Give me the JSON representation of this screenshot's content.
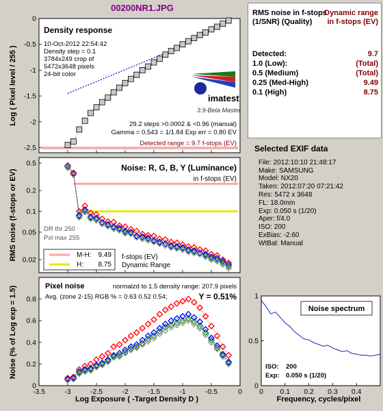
{
  "header": {
    "title": "00200NR1.JPG"
  },
  "summary": {
    "col1_title": "RMS noise in f-stops (1/SNR) (Quality)",
    "col2_title": "Dynamic range in f-stops (EV)",
    "rows": [
      {
        "label": "Detected:",
        "value": "9.7"
      },
      {
        "label": "1.0 (Low):",
        "value": "(Total)"
      },
      {
        "label": "0.5 (Medium)",
        "value": "(Total)"
      },
      {
        "label": "0.25 (Med-High)",
        "value": "9.49"
      },
      {
        "label": "0.1 (High)",
        "value": "8.75"
      }
    ]
  },
  "exif": {
    "title": "Selected EXIF data",
    "lines": [
      "File: 2012:10:10 21:48:17",
      "Make: SAMSUNG",
      "Model: NX20",
      "Taken: 2012:07:20 07:21:42",
      "Res: 5472 x 3648",
      "FL: 18.0mm",
      "Exp: 0.050 s (1/20)",
      "Aper: f/4.0",
      "ISO: 200",
      "ExBias: -2.60",
      "WtBal: Manual"
    ]
  },
  "density_panel": {
    "title": "Density response",
    "info": [
      "10-Oct-2012 22:54:42",
      "Density step = 0.1",
      "3784x249 crop of",
      "5472x3648 pixels",
      "24-bit color"
    ],
    "logo": "imatest",
    "logo_sub": "3.9-Beta  Master",
    "stats": [
      "29.2 steps >0.0002 & <0.96 (manual)",
      "Gamma = 0.543 = 1/1.84  Exp err = 0.80 EV"
    ],
    "detected_range": "Detected range = 9.7 f-stops (EV)",
    "ylabel": "Log ( Pixel level / 255 )"
  },
  "noise_panel": {
    "title": "Noise: R, G, B, Y (Luminance)",
    "subtitle": "in f-stops (EV)",
    "thr": [
      "DR thr 250",
      "Pxl max 255"
    ],
    "ylabel": "RMS noise (f-stops or EV)",
    "legend": [
      {
        "label": "M-H:",
        "value": "9.49",
        "color": "#f4a8a0"
      },
      {
        "label": "H:",
        "value": "8.75",
        "color": "#e8e800"
      }
    ],
    "legend_side": [
      "f-stops (EV)",
      "Dynamic Range"
    ]
  },
  "pixel_panel": {
    "title": "Pixel noise",
    "norm": "normalzd to 1.5 density range: 207.9 pixels",
    "avg": "Avg. (zone 2-15) RGB % = 0.63  0.52  0.54;",
    "y_value": "Y = 0.51%",
    "ylabel": "Noise (% of Log exp = 1.5)",
    "xlabel": "Log Exposure ( -Target Density D )"
  },
  "spectrum": {
    "title": "Noise spectrum",
    "iso_label": "ISO:",
    "iso": "200",
    "exp_label": "Exp:",
    "exp": "0.050 s   (1/20)",
    "xlabel": "Frequency, cycles/pixel"
  },
  "chart_data": [
    {
      "type": "scatter",
      "title": "Density response",
      "ylabel": "Log ( Pixel level / 255 )",
      "xlim": [
        -3.5,
        0
      ],
      "ylim": [
        -2.6,
        0
      ],
      "xticks": [
        -3.5,
        -3,
        -2.5,
        -2,
        -1.5,
        -1,
        -0.5,
        0
      ],
      "yticks": [
        0,
        -0.5,
        -1,
        -1.5,
        -2,
        -2.5
      ],
      "series": [
        {
          "name": "Measured",
          "x": [
            -3.0,
            -2.9,
            -2.8,
            -2.7,
            -2.6,
            -2.5,
            -2.4,
            -2.3,
            -2.2,
            -2.1,
            -2.0,
            -1.9,
            -1.8,
            -1.7,
            -1.6,
            -1.5,
            -1.4,
            -1.3,
            -1.2,
            -1.1,
            -1.0,
            -0.9,
            -0.8,
            -0.7,
            -0.6,
            -0.5,
            -0.4,
            -0.3,
            -0.2
          ],
          "y": [
            -2.45,
            -2.38,
            -2.15,
            -1.98,
            -1.83,
            -1.72,
            -1.62,
            -1.53,
            -1.43,
            -1.34,
            -1.25,
            -1.17,
            -1.09,
            -1.0,
            -0.93,
            -0.85,
            -0.78,
            -0.7,
            -0.63,
            -0.57,
            -0.5,
            -0.44,
            -0.38,
            -0.32,
            -0.27,
            -0.21,
            -0.16,
            -0.1,
            -0.04
          ]
        },
        {
          "name": "Fit",
          "x": [
            -3.0,
            -1.15
          ],
          "y": [
            -1.45,
            -0.6
          ]
        }
      ]
    },
    {
      "type": "line",
      "title": "Noise: R, G, B, Y (Luminance)",
      "ylabel": "RMS noise (f-stops or EV)",
      "yscale": "log",
      "xlim": [
        -3.5,
        0
      ],
      "ylim": [
        0.013,
        0.6
      ],
      "yticks": [
        0.5,
        0.2,
        0.1,
        0.05,
        0.02
      ],
      "thresholds": [
        0.25,
        0.1
      ],
      "x": [
        -3.0,
        -2.9,
        -2.8,
        -2.7,
        -2.6,
        -2.5,
        -2.4,
        -2.3,
        -2.2,
        -2.1,
        -2.0,
        -1.9,
        -1.8,
        -1.7,
        -1.6,
        -1.5,
        -1.4,
        -1.3,
        -1.2,
        -1.1,
        -1.0,
        -0.9,
        -0.8,
        -0.7,
        -0.6,
        -0.5,
        -0.4,
        -0.3,
        -0.2
      ],
      "series": [
        {
          "name": "R",
          "color": "#ff0000",
          "values": [
            0.46,
            0.36,
            0.1,
            0.12,
            0.095,
            0.09,
            0.078,
            0.071,
            0.07,
            0.062,
            0.06,
            0.055,
            0.052,
            0.047,
            0.045,
            0.044,
            0.04,
            0.039,
            0.036,
            0.035,
            0.033,
            0.031,
            0.03,
            0.028,
            0.027,
            0.024,
            0.023,
            0.02,
            0.018
          ]
        },
        {
          "name": "G",
          "color": "#00a000",
          "values": [
            0.43,
            0.34,
            0.085,
            0.1,
            0.08,
            0.076,
            0.068,
            0.063,
            0.058,
            0.055,
            0.05,
            0.049,
            0.043,
            0.042,
            0.04,
            0.037,
            0.035,
            0.034,
            0.031,
            0.03,
            0.029,
            0.027,
            0.026,
            0.025,
            0.023,
            0.021,
            0.02,
            0.018,
            0.016
          ]
        },
        {
          "name": "B",
          "color": "#0000ff",
          "values": [
            0.45,
            0.35,
            0.088,
            0.105,
            0.083,
            0.08,
            0.069,
            0.065,
            0.06,
            0.057,
            0.052,
            0.05,
            0.044,
            0.043,
            0.041,
            0.038,
            0.036,
            0.034,
            0.032,
            0.031,
            0.03,
            0.028,
            0.027,
            0.025,
            0.024,
            0.022,
            0.021,
            0.019,
            0.017
          ]
        },
        {
          "name": "Y",
          "color": "#909090",
          "values": [
            0.44,
            0.34,
            0.082,
            0.098,
            0.078,
            0.074,
            0.066,
            0.061,
            0.056,
            0.053,
            0.048,
            0.047,
            0.042,
            0.04,
            0.038,
            0.036,
            0.034,
            0.032,
            0.03,
            0.029,
            0.028,
            0.026,
            0.025,
            0.024,
            0.022,
            0.02,
            0.019,
            0.017,
            0.015
          ]
        }
      ]
    },
    {
      "type": "line",
      "title": "Pixel noise",
      "ylabel": "Noise (% of Log exp = 1.5)",
      "xlabel": "Log Exposure ( -Target Density D )",
      "xlim": [
        -3.5,
        0
      ],
      "ylim": [
        0,
        1
      ],
      "xticks": [
        -3.5,
        -3,
        -2.5,
        -2,
        -1.5,
        -1,
        -0.5,
        0
      ],
      "yticks": [
        0,
        0.2,
        0.4,
        0.6,
        0.8
      ],
      "x": [
        -3.0,
        -2.9,
        -2.8,
        -2.7,
        -2.6,
        -2.5,
        -2.4,
        -2.3,
        -2.2,
        -2.1,
        -2.0,
        -1.9,
        -1.8,
        -1.7,
        -1.6,
        -1.5,
        -1.4,
        -1.3,
        -1.2,
        -1.1,
        -1.0,
        -0.9,
        -0.8,
        -0.7,
        -0.6,
        -0.5,
        -0.4,
        -0.3,
        -0.2
      ],
      "series": [
        {
          "name": "R",
          "color": "#ff0000",
          "values": [
            0.07,
            0.08,
            0.15,
            0.18,
            0.2,
            0.24,
            0.27,
            0.3,
            0.36,
            0.38,
            0.42,
            0.46,
            0.49,
            0.53,
            0.57,
            0.61,
            0.66,
            0.7,
            0.73,
            0.76,
            0.78,
            0.8,
            0.77,
            0.72,
            0.64,
            0.55,
            0.46,
            0.36,
            0.28
          ]
        },
        {
          "name": "G",
          "color": "#00a000",
          "values": [
            0.06,
            0.07,
            0.12,
            0.14,
            0.15,
            0.18,
            0.2,
            0.23,
            0.27,
            0.28,
            0.31,
            0.34,
            0.36,
            0.39,
            0.43,
            0.46,
            0.5,
            0.54,
            0.56,
            0.58,
            0.6,
            0.62,
            0.59,
            0.55,
            0.49,
            0.42,
            0.35,
            0.28,
            0.21
          ]
        },
        {
          "name": "B",
          "color": "#0000ff",
          "values": [
            0.06,
            0.07,
            0.13,
            0.15,
            0.16,
            0.19,
            0.21,
            0.24,
            0.28,
            0.3,
            0.33,
            0.36,
            0.38,
            0.42,
            0.46,
            0.49,
            0.53,
            0.57,
            0.6,
            0.62,
            0.64,
            0.66,
            0.63,
            0.59,
            0.52,
            0.44,
            0.37,
            0.29,
            0.22
          ]
        },
        {
          "name": "Y",
          "color": "#909090",
          "values": [
            0.05,
            0.06,
            0.11,
            0.13,
            0.14,
            0.17,
            0.19,
            0.22,
            0.26,
            0.27,
            0.3,
            0.33,
            0.35,
            0.38,
            0.41,
            0.44,
            0.48,
            0.51,
            0.54,
            0.56,
            0.58,
            0.6,
            0.57,
            0.53,
            0.47,
            0.4,
            0.34,
            0.27,
            0.2
          ]
        }
      ]
    },
    {
      "type": "line",
      "title": "Noise spectrum",
      "xlabel": "Frequency, cycles/pixel",
      "xlim": [
        0,
        0.5
      ],
      "ylim": [
        0,
        1
      ],
      "xticks": [
        0,
        0.1,
        0.2,
        0.3,
        0.4
      ],
      "yticks": [
        0,
        0.5,
        1
      ],
      "x": [
        0.0,
        0.02,
        0.04,
        0.06,
        0.08,
        0.1,
        0.12,
        0.14,
        0.16,
        0.18,
        0.2,
        0.22,
        0.24,
        0.26,
        0.28,
        0.3,
        0.32,
        0.34,
        0.36,
        0.38,
        0.4,
        0.42,
        0.44,
        0.46,
        0.48,
        0.5
      ],
      "values": [
        0.95,
        0.88,
        0.8,
        0.82,
        0.76,
        0.7,
        0.66,
        0.6,
        0.56,
        0.52,
        0.51,
        0.48,
        0.46,
        0.44,
        0.45,
        0.42,
        0.4,
        0.38,
        0.39,
        0.36,
        0.35,
        0.34,
        0.34,
        0.33,
        0.34,
        0.35
      ]
    }
  ]
}
